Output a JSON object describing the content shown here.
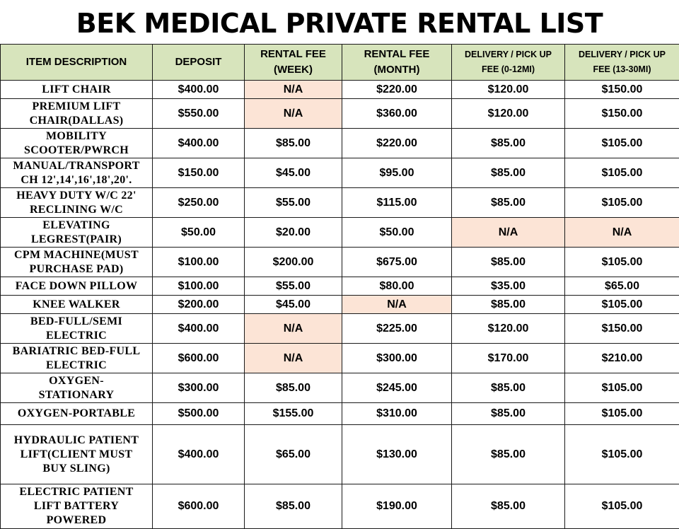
{
  "title": "BEK MEDICAL PRIVATE RENTAL LIST",
  "colors": {
    "header_bg": "#d7e4bc",
    "na_bg": "#fce4d6",
    "border": "#1a1a1a"
  },
  "headers": [
    {
      "line1": "ITEM DESCRIPTION",
      "line2": ""
    },
    {
      "line1": "DEPOSIT",
      "line2": ""
    },
    {
      "line1": "RENTAL FEE",
      "line2": "(WEEK)"
    },
    {
      "line1": "RENTAL FEE",
      "line2": "(MONTH)"
    },
    {
      "line1": "DELIVERY / PICK UP",
      "line2": "FEE (0-12MI)"
    },
    {
      "line1": "DELIVERY / PICK UP",
      "line2": "FEE (13-30MI)"
    }
  ],
  "rows": [
    {
      "item": [
        "LIFT CHAIR"
      ],
      "deposit": "$400.00",
      "week": "N/A",
      "month": "$220.00",
      "del_near": "$120.00",
      "del_far": "$150.00"
    },
    {
      "item": [
        "PREMIUM LIFT",
        "CHAIR(DALLAS)"
      ],
      "deposit": "$550.00",
      "week": "N/A",
      "month": "$360.00",
      "del_near": "$120.00",
      "del_far": "$150.00"
    },
    {
      "item": [
        "MOBILITY",
        "SCOOTER/PWRCH"
      ],
      "deposit": "$400.00",
      "week": "$85.00",
      "month": "$220.00",
      "del_near": "$85.00",
      "del_far": "$105.00"
    },
    {
      "item": [
        "MANUAL/TRANSPORT",
        "CH 12',14',16',18',20'."
      ],
      "deposit": "$150.00",
      "week": "$45.00",
      "month": "$95.00",
      "del_near": "$85.00",
      "del_far": "$105.00"
    },
    {
      "item": [
        "HEAVY DUTY W/C 22'",
        "RECLINING W/C"
      ],
      "deposit": "$250.00",
      "week": "$55.00",
      "month": "$115.00",
      "del_near": "$85.00",
      "del_far": "$105.00"
    },
    {
      "item": [
        "ELEVATING",
        "LEGREST(PAIR)"
      ],
      "deposit": "$50.00",
      "week": "$20.00",
      "month": "$50.00",
      "del_near": "N/A",
      "del_far": "N/A"
    },
    {
      "item": [
        "CPM MACHINE(MUST",
        "PURCHASE PAD)"
      ],
      "deposit": "$100.00",
      "week": "$200.00",
      "month": "$675.00",
      "del_near": "$85.00",
      "del_far": "$105.00"
    },
    {
      "item": [
        "FACE DOWN PILLOW"
      ],
      "deposit": "$100.00",
      "week": "$55.00",
      "month": "$80.00",
      "del_near": "$35.00",
      "del_far": "$65.00"
    },
    {
      "item": [
        "KNEE WALKER"
      ],
      "deposit": "$200.00",
      "week": "$45.00",
      "month": "N/A",
      "del_near": "$85.00",
      "del_far": "$105.00"
    },
    {
      "item": [
        "BED-FULL/SEMI",
        "ELECTRIC"
      ],
      "deposit": "$400.00",
      "week": "N/A",
      "month": "$225.00",
      "del_near": "$120.00",
      "del_far": "$150.00"
    },
    {
      "item": [
        "BARIATRIC BED-FULL",
        "ELECTRIC"
      ],
      "deposit": "$600.00",
      "week": "N/A",
      "month": "$300.00",
      "del_near": "$170.00",
      "del_far": "$210.00"
    },
    {
      "item": [
        "OXYGEN-",
        "STATIONARY"
      ],
      "deposit": "$300.00",
      "week": "$85.00",
      "month": "$245.00",
      "del_near": "$85.00",
      "del_far": "$105.00"
    },
    {
      "item": [
        "OXYGEN-PORTABLE"
      ],
      "deposit": "$500.00",
      "week": "$155.00",
      "month": "$310.00",
      "del_near": "$85.00",
      "del_far": "$105.00"
    },
    {
      "item": [
        "HYDRAULIC PATIENT",
        "LIFT(CLIENT MUST",
        "BUY SLING)"
      ],
      "deposit": "$400.00",
      "week": "$65.00",
      "month": "$130.00",
      "del_near": "$85.00",
      "del_far": "$105.00"
    },
    {
      "item": [
        "ELECTRIC PATIENT",
        "LIFT BATTERY",
        "POWERED"
      ],
      "deposit": "$600.00",
      "week": "$85.00",
      "month": "$190.00",
      "del_near": "$85.00",
      "del_far": "$105.00"
    }
  ]
}
